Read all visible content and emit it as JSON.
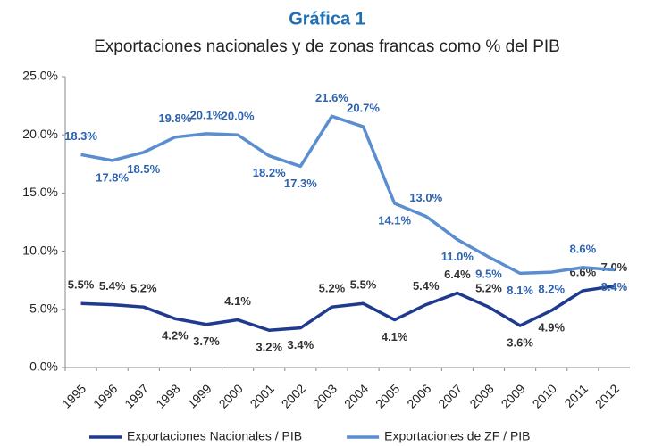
{
  "chart_data": {
    "type": "line",
    "title": "Gráfica 1",
    "subtitle": "Exportaciones nacionales y de zonas francas como % del PIB",
    "categories": [
      "1995",
      "1996",
      "1997",
      "1998",
      "1999",
      "2000",
      "2001",
      "2002",
      "2003",
      "2004",
      "2005",
      "2006",
      "2007",
      "2008",
      "2009",
      "2010",
      "2011",
      "2012"
    ],
    "series": [
      {
        "name": "Exportaciones Nacionales / PIB",
        "color": "#1f3a8f",
        "values": [
          5.5,
          5.4,
          5.2,
          4.2,
          3.7,
          4.1,
          3.2,
          3.4,
          5.2,
          5.5,
          4.1,
          5.4,
          6.4,
          5.2,
          3.6,
          4.9,
          6.6,
          7.0
        ],
        "value_labels": [
          "5.5%",
          "5.4%",
          "5.2%",
          "4.2%",
          "3.7%",
          "4.1%",
          "3.2%",
          "3.4%",
          "5.2%",
          "5.5%",
          "4.1%",
          "5.4%",
          "6.4%",
          "5.2%",
          "3.6%",
          "4.9%",
          "6.6%",
          "7.0%"
        ],
        "label_color": "#333333"
      },
      {
        "name": "Exportaciones de ZF / PIB",
        "color": "#5a8ed0",
        "values": [
          18.3,
          17.8,
          18.5,
          19.8,
          20.1,
          20.0,
          18.2,
          17.3,
          21.6,
          20.7,
          14.1,
          13.0,
          11.0,
          9.5,
          8.1,
          8.2,
          8.6,
          8.4
        ],
        "value_labels": [
          "18.3%",
          "17.8%",
          "18.5%",
          "19.8%",
          "20.1%",
          "20.0%",
          "18.2%",
          "17.3%",
          "21.6%",
          "20.7%",
          "14.1%",
          "13.0%",
          "11.0%",
          "9.5%",
          "8.1%",
          "8.2%",
          "8.6%",
          "8.4%"
        ],
        "label_color": "#2e63ad"
      }
    ],
    "ylim": [
      0,
      25
    ],
    "yticks": [
      {
        "value": 0,
        "label": "0.0%"
      },
      {
        "value": 5,
        "label": "5.0%"
      },
      {
        "value": 10,
        "label": "10.0%"
      },
      {
        "value": 15,
        "label": "15.0%"
      },
      {
        "value": 20,
        "label": "20.0%"
      },
      {
        "value": 25,
        "label": "25.0%"
      }
    ],
    "grid": false,
    "legend": "bottom"
  }
}
